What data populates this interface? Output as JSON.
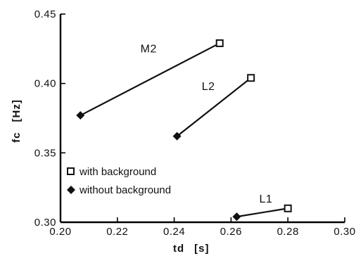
{
  "chart_data": {
    "type": "scatter",
    "title": "",
    "xlabel": "td",
    "xunit": "[s]",
    "ylabel": "fc",
    "yunit": "[Hz]",
    "xlim": [
      0.2,
      0.3
    ],
    "ylim": [
      0.3,
      0.45
    ],
    "x_ticks": [
      0.2,
      0.22,
      0.24,
      0.26,
      0.28,
      0.3
    ],
    "x_tick_labels": [
      "0.20",
      "0.22",
      "0.24",
      "0.26",
      "0.28",
      "0.30"
    ],
    "y_ticks": [
      0.3,
      0.35,
      0.4,
      0.45
    ],
    "y_tick_labels": [
      "0.30",
      "0.35",
      "0.40",
      "0.45"
    ],
    "grid": false,
    "legend_position": "bottom-left",
    "legend": [
      {
        "marker": "square-open",
        "label": "with background"
      },
      {
        "marker": "diamond-filled",
        "label": "without background"
      }
    ],
    "pairs": [
      {
        "name": "M2",
        "without_background": [
          0.207,
          0.377
        ],
        "with_background": [
          0.256,
          0.429
        ]
      },
      {
        "name": "L2",
        "without_background": [
          0.241,
          0.362
        ],
        "with_background": [
          0.267,
          0.404
        ]
      },
      {
        "name": "L1",
        "without_background": [
          0.262,
          0.304
        ],
        "with_background": [
          0.28,
          0.31
        ]
      }
    ]
  }
}
